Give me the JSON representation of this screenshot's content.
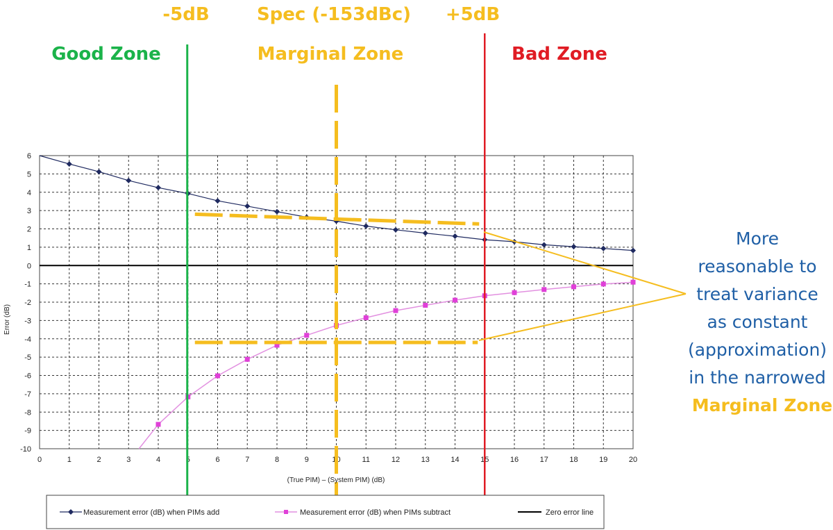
{
  "colors": {
    "add_series": "#1f2a60",
    "subtract_series": "#e040d8",
    "subtract_line": "#e290e0",
    "good": "#1bb34a",
    "marginal": "#f5bd1f",
    "bad": "#e01c24",
    "note": "#1f5fa6",
    "grid": "#333333"
  },
  "zones": {
    "good_label": "Good Zone",
    "marginal_label": "Marginal Zone",
    "bad_label": "Bad Zone"
  },
  "markers": {
    "minus5": "-5dB",
    "spec": "Spec (-153dBc)",
    "plus5": "+5dB"
  },
  "note": {
    "lines": [
      "More",
      "reasonable to",
      "treat variance",
      "as constant",
      "(approximation)",
      "in the narrowed"
    ],
    "highlight": "Marginal Zone"
  },
  "chart_data": {
    "type": "line",
    "xlabel": "(True PIM) – (System PIM)  (dB)",
    "ylabel": "Error   (dB)",
    "xlim": [
      0,
      20
    ],
    "ylim": [
      -10,
      6
    ],
    "grid": true,
    "x_ticks": [
      "0",
      "1",
      "2",
      "3",
      "4",
      "5",
      "6",
      "7",
      "8",
      "9",
      "10",
      "11",
      "12",
      "13",
      "14",
      "15",
      "16",
      "17",
      "18",
      "19",
      "20"
    ],
    "y_ticks": [
      "6",
      "5",
      "4",
      "3",
      "2",
      "1",
      "0",
      "-1",
      "-2",
      "-3",
      "-4",
      "-5",
      "-6",
      "-7",
      "-8",
      "-9",
      "-10"
    ],
    "series": [
      {
        "name": "Measurement error (dB) when PIMs add",
        "x": [
          1,
          2,
          3,
          4,
          5,
          6,
          7,
          8,
          9,
          10,
          11,
          12,
          13,
          14,
          15,
          16,
          17,
          18,
          19,
          20
        ],
        "values": [
          5.54,
          5.12,
          4.64,
          4.25,
          3.93,
          3.53,
          3.24,
          2.94,
          2.64,
          2.42,
          2.15,
          1.95,
          1.77,
          1.6,
          1.41,
          1.3,
          1.13,
          1.03,
          0.93,
          0.82
        ]
      },
      {
        "name": "Measurement error (dB) when PIMs subtract",
        "x": [
          4,
          5,
          6,
          7,
          8,
          9,
          10,
          11,
          12,
          13,
          14,
          15,
          16,
          17,
          18,
          19,
          20
        ],
        "values": [
          -8.67,
          -7.17,
          -6.02,
          -5.12,
          -4.35,
          -3.81,
          -3.27,
          -2.85,
          -2.46,
          -2.17,
          -1.89,
          -1.65,
          -1.48,
          -1.31,
          -1.16,
          -1.01,
          -0.91
        ]
      },
      {
        "name": "Zero error line",
        "x": [
          0,
          20
        ],
        "values": [
          0,
          0
        ]
      }
    ],
    "legend_position": "bottom",
    "legend": [
      "Measurement error (dB) when PIMs add",
      "Measurement error (dB) when PIMs subtract",
      "Zero error line"
    ],
    "annotations": {
      "zone_boundaries_x": [
        5,
        15
      ],
      "spec_x": 10,
      "upper_band_y": 2.47,
      "lower_band_y": -4.2,
      "band_x": [
        5,
        15
      ]
    }
  }
}
